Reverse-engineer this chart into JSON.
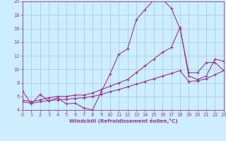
{
  "xlabel": "Windchill (Refroidissement éolien,°C)",
  "background_color": "#cceeff",
  "grid_color": "#99bbcc",
  "line_color": "#993399",
  "xlim": [
    0,
    23
  ],
  "ylim": [
    4,
    20
  ],
  "xticks": [
    0,
    1,
    2,
    3,
    4,
    5,
    6,
    7,
    8,
    9,
    10,
    11,
    12,
    13,
    14,
    15,
    16,
    17,
    18,
    19,
    20,
    21,
    22,
    23
  ],
  "yticks": [
    4,
    6,
    8,
    10,
    12,
    14,
    16,
    18,
    20
  ],
  "curve1_x": [
    0,
    1,
    2,
    3,
    4,
    5,
    6,
    7,
    8,
    9,
    10,
    11,
    12,
    13,
    14,
    15,
    16,
    17,
    18,
    19,
    20,
    21,
    22,
    23
  ],
  "curve1_y": [
    6.8,
    4.9,
    6.3,
    5.3,
    5.8,
    4.9,
    5.0,
    4.3,
    4.0,
    6.7,
    9.3,
    12.2,
    13.0,
    17.3,
    18.8,
    20.2,
    20.3,
    19.0,
    16.0,
    9.5,
    9.5,
    11.0,
    11.0,
    9.8
  ],
  "curve2_x": [
    0,
    1,
    2,
    3,
    4,
    5,
    6,
    7,
    8,
    9,
    10,
    11,
    12,
    13,
    14,
    15,
    16,
    17,
    18,
    19,
    20,
    21,
    22,
    23
  ],
  "curve2_y": [
    5.5,
    5.2,
    5.5,
    5.8,
    6.0,
    6.0,
    6.2,
    6.2,
    6.5,
    7.0,
    7.5,
    8.0,
    8.5,
    9.5,
    10.5,
    11.5,
    12.5,
    13.2,
    16.2,
    9.0,
    8.5,
    9.0,
    11.5,
    11.2
  ],
  "curve3_x": [
    0,
    1,
    2,
    3,
    4,
    5,
    6,
    7,
    8,
    9,
    10,
    11,
    12,
    13,
    14,
    15,
    16,
    17,
    18,
    19,
    20,
    21,
    22,
    23
  ],
  "curve3_y": [
    5.2,
    5.0,
    5.2,
    5.4,
    5.5,
    5.6,
    5.7,
    5.8,
    6.0,
    6.3,
    6.7,
    7.0,
    7.4,
    7.8,
    8.2,
    8.6,
    9.0,
    9.4,
    9.8,
    8.2,
    8.3,
    8.6,
    9.2,
    9.8
  ]
}
